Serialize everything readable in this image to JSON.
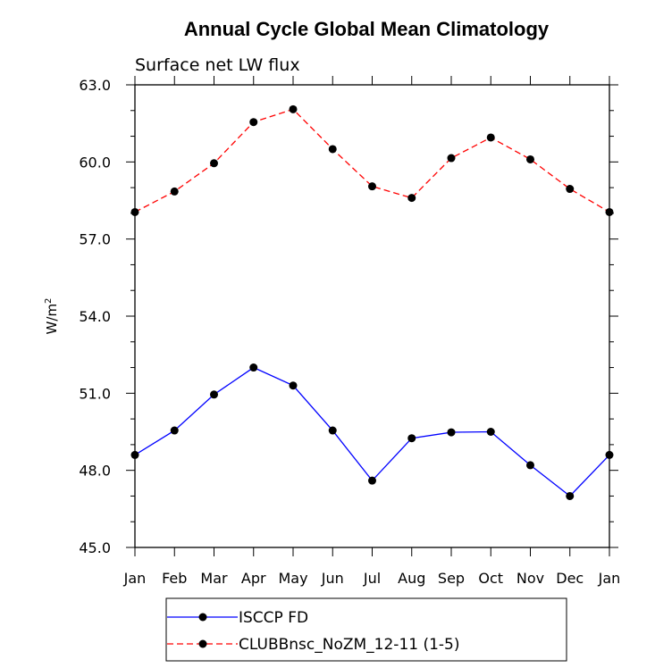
{
  "chart_data": {
    "type": "line",
    "title": "Annual Cycle Global Mean Climatology",
    "subtitle": "Surface net LW flux",
    "ylabel": "W/m",
    "ylabel_sup": "2",
    "xlabel": "",
    "categories": [
      "Jan",
      "Feb",
      "Mar",
      "Apr",
      "May",
      "Jun",
      "Jul",
      "Aug",
      "Sep",
      "Oct",
      "Nov",
      "Dec",
      "Jan"
    ],
    "ylim": [
      45.0,
      63.0
    ],
    "yticks": [
      "45.0",
      "48.0",
      "51.0",
      "54.0",
      "57.0",
      "60.0",
      "63.0"
    ],
    "legend_position": "bottom",
    "series": [
      {
        "name": "ISCCP FD",
        "color": "#0000ff",
        "dash": "solid",
        "values": [
          48.6,
          49.55,
          50.95,
          52.0,
          51.3,
          49.55,
          47.6,
          49.25,
          49.48,
          49.5,
          48.2,
          47.0,
          48.6
        ]
      },
      {
        "name": "CLUBBnsc_NoZM_12-11 (1-5)",
        "color": "#ff0000",
        "dash": "dashed",
        "values": [
          58.05,
          58.85,
          59.95,
          61.55,
          62.05,
          60.5,
          59.05,
          58.6,
          60.15,
          60.95,
          60.1,
          58.95,
          58.05
        ]
      }
    ]
  }
}
